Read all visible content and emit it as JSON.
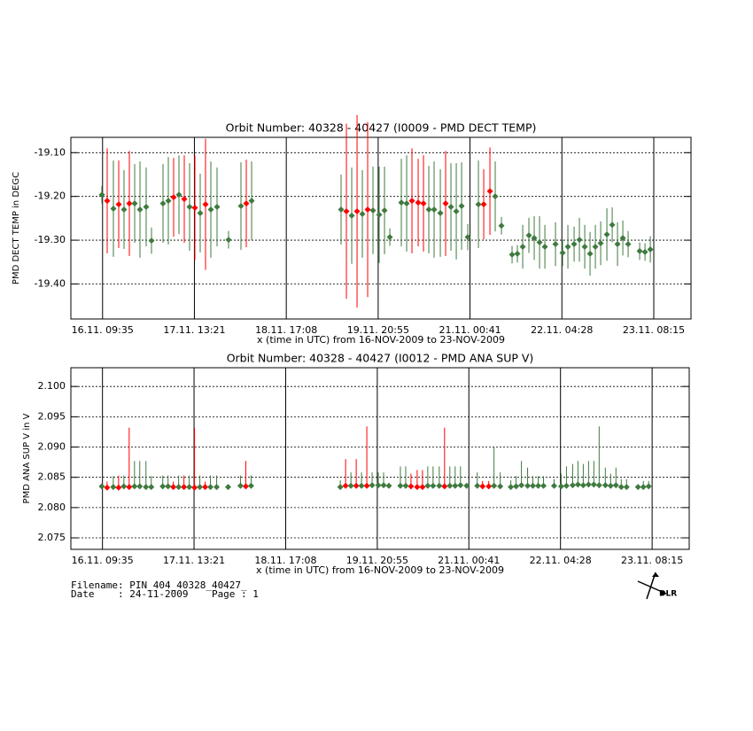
{
  "chart_data": [
    {
      "type": "scatter",
      "title": "Orbit Number: 40328 - 40427 (I0009 - PMD DECT TEMP)",
      "y_label": "PMD DECT TEMP in DEGC",
      "x_label": "x (time in UTC) from 16-NOV-2009 to 23-NOV-2009",
      "xlim": [
        0,
        187.5
      ],
      "xticks": [
        {
          "value": 9.583,
          "label": "16.11. 09:35"
        },
        {
          "value": 37.35,
          "label": "17.11. 13:21"
        },
        {
          "value": 65.133,
          "label": "18.11. 17:08"
        },
        {
          "value": 92.917,
          "label": "19.11. 20:55"
        },
        {
          "value": 120.683,
          "label": "21.11. 00:41"
        },
        {
          "value": 148.467,
          "label": "22.11. 04:28"
        },
        {
          "value": 176.25,
          "label": "23.11. 08:15"
        }
      ],
      "ylim": [
        -19.48,
        -19.065
      ],
      "yticks": [
        {
          "value": -19.1,
          "label": "-19.10"
        },
        {
          "value": -19.2,
          "label": "-19.20"
        },
        {
          "value": -19.3,
          "label": "-19.30"
        },
        {
          "value": -19.4,
          "label": "-19.40"
        }
      ],
      "grid": true,
      "series": [
        {
          "color": "#ff0000",
          "x": [
            10.98,
            14.47,
            17.68,
            31.07,
            34.29,
            37.5,
            40.72,
            53.04,
            83.31,
            86.53,
            89.74,
            103.13,
            105.01,
            106.62,
            113.31,
            124.83,
            126.71
          ],
          "values": [
            -19.21,
            -19.218,
            -19.216,
            -19.202,
            -19.206,
            -19.226,
            -19.218,
            -19.216,
            -19.234,
            -19.234,
            -19.23,
            -19.21,
            -19.214,
            -19.216,
            -19.216,
            -19.218,
            -19.188
          ],
          "errors": [
            0.12,
            0.1,
            0.12,
            0.09,
            0.1,
            0.12,
            0.15,
            0.1,
            0.2,
            0.22,
            0.2,
            0.12,
            0.1,
            0.11,
            0.12,
            0.08,
            0.1
          ]
        },
        {
          "color": "#3f7a3f",
          "x": [
            9.38,
            12.86,
            16.07,
            19.29,
            20.89,
            22.77,
            24.38,
            27.86,
            29.47,
            32.68,
            35.9,
            39.11,
            42.32,
            44.2,
            47.68,
            51.43,
            54.65,
            81.7,
            84.92,
            88.13,
            91.35,
            93.22,
            94.83,
            96.44,
            99.92,
            101.53,
            108.22,
            109.83,
            111.71,
            114.92,
            116.53,
            118.14,
            120.01,
            123.23,
            128.31,
            130.19,
            133.4,
            135.01,
            136.62,
            138.49,
            140.1,
            141.71,
            143.32,
            146.53,
            148.67,
            150.28,
            152.16,
            153.76,
            155.37,
            156.98,
            158.59,
            160.19,
            162.07,
            163.68,
            165.28,
            166.89,
            168.5,
            171.98,
            173.59,
            175.2
          ],
          "values": [
            -19.196,
            -19.228,
            -19.23,
            -19.216,
            -19.23,
            -19.224,
            -19.301,
            -19.216,
            -19.21,
            -19.196,
            -19.224,
            -19.238,
            -19.23,
            -19.224,
            -19.299,
            -19.222,
            -19.21,
            -19.23,
            -19.244,
            -19.24,
            -19.232,
            -19.242,
            -19.232,
            -19.293,
            -19.214,
            -19.216,
            -19.23,
            -19.23,
            -19.238,
            -19.224,
            -19.234,
            -19.222,
            -19.293,
            -19.218,
            -19.2,
            -19.267,
            -19.333,
            -19.331,
            -19.315,
            -19.289,
            -19.295,
            -19.305,
            -19.315,
            -19.309,
            -19.329,
            -19.315,
            -19.309,
            -19.299,
            -19.315,
            -19.331,
            -19.315,
            -19.307,
            -19.287,
            -19.265,
            -19.309,
            -19.295,
            -19.309,
            -19.325,
            -19.327,
            -19.321
          ],
          "errors": [
            0.02,
            0.11,
            0.09,
            0.09,
            0.11,
            0.09,
            0.03,
            0.09,
            0.1,
            0.09,
            0.1,
            0.09,
            0.11,
            0.09,
            0.02,
            0.1,
            0.09,
            0.08,
            0.11,
            0.1,
            0.1,
            0.11,
            0.1,
            0.02,
            0.1,
            0.11,
            0.1,
            0.11,
            0.1,
            0.1,
            0.11,
            0.1,
            0.03,
            0.1,
            0.08,
            0.02,
            0.02,
            0.02,
            0.05,
            0.04,
            0.05,
            0.06,
            0.05,
            0.05,
            0.03,
            0.05,
            0.04,
            0.05,
            0.05,
            0.05,
            0.05,
            0.05,
            0.06,
            0.04,
            0.05,
            0.04,
            0.03,
            0.02,
            0.02,
            0.03
          ]
        }
      ]
    },
    {
      "type": "scatter",
      "title": "Orbit Number: 40328 - 40427 (I0012 - PMD ANA SUP V)",
      "y_label": "PMD ANA SUP V in V",
      "x_label": "x (time in UTC) from 16-NOV-2009 to 23-NOV-2009",
      "xlim": [
        0,
        187.5
      ],
      "xticks": [
        {
          "value": 9.583,
          "label": "16.11. 09:35"
        },
        {
          "value": 37.35,
          "label": "17.11. 13:21"
        },
        {
          "value": 65.133,
          "label": "18.11. 17:08"
        },
        {
          "value": 92.917,
          "label": "19.11. 20:55"
        },
        {
          "value": 120.683,
          "label": "21.11. 00:41"
        },
        {
          "value": 148.467,
          "label": "22.11. 04:28"
        },
        {
          "value": 176.25,
          "label": "23.11. 08:15"
        }
      ],
      "ylim": [
        2.0731,
        2.1031
      ],
      "yticks": [
        2.075,
        {
          "value": 2.08,
          "label": "2.080"
        },
        2.085,
        {
          "value": 2.09,
          "label": "2.090"
        },
        2.095,
        {
          "value": 2.1,
          "label": "2.100"
        }
      ],
      "grid": true,
      "series": [
        {
          "color": "#ff0000",
          "x": [
            10.98,
            14.47,
            17.68,
            31.07,
            34.29,
            37.5,
            40.72,
            53.04,
            83.31,
            86.53,
            89.74,
            103.13,
            105.01,
            106.62,
            113.31,
            124.83,
            126.71
          ],
          "values": [
            2.0833,
            2.0833,
            2.0834,
            2.0834,
            2.0834,
            2.0833,
            2.0834,
            2.0835,
            2.0836,
            2.0836,
            2.0836,
            2.0835,
            2.0834,
            2.0834,
            2.0835,
            2.0835,
            2.0835
          ],
          "highs": [
            2.0843,
            2.0853,
            2.0932,
            2.0843,
            2.0853,
            2.0932,
            2.0843,
            2.0877,
            2.088,
            2.088,
            2.0934,
            2.0856,
            2.0862,
            2.0862,
            2.0932,
            2.0844,
            2.0844
          ]
        },
        {
          "color": "#3f7a3f",
          "x": [
            9.38,
            12.86,
            16.07,
            19.29,
            20.89,
            22.77,
            24.38,
            27.86,
            29.47,
            32.68,
            35.9,
            39.11,
            42.32,
            44.2,
            47.68,
            51.43,
            54.65,
            81.7,
            84.92,
            88.13,
            91.35,
            93.22,
            94.83,
            96.44,
            99.92,
            101.53,
            108.22,
            109.83,
            111.71,
            114.92,
            116.53,
            118.14,
            120.01,
            123.23,
            128.31,
            130.19,
            133.4,
            135.01,
            136.62,
            138.49,
            140.1,
            141.71,
            143.32,
            146.53,
            148.67,
            150.28,
            152.16,
            153.76,
            155.37,
            156.98,
            158.59,
            160.19,
            162.07,
            163.68,
            165.28,
            166.89,
            168.5,
            171.98,
            173.59,
            175.2
          ],
          "values": [
            2.0835,
            2.0834,
            2.0835,
            2.0835,
            2.0835,
            2.0834,
            2.0834,
            2.0835,
            2.0835,
            2.0834,
            2.0834,
            2.0834,
            2.0834,
            2.0834,
            2.0834,
            2.0836,
            2.0836,
            2.0834,
            2.0836,
            2.0836,
            2.0837,
            2.0837,
            2.0837,
            2.0836,
            2.0836,
            2.0836,
            2.0836,
            2.0836,
            2.0836,
            2.0836,
            2.0836,
            2.0837,
            2.0836,
            2.0836,
            2.0836,
            2.0835,
            2.0834,
            2.0835,
            2.0837,
            2.0836,
            2.0836,
            2.0836,
            2.0836,
            2.0836,
            2.0835,
            2.0836,
            2.0837,
            2.0838,
            2.0837,
            2.0838,
            2.0838,
            2.0837,
            2.0837,
            2.0836,
            2.0837,
            2.0834,
            2.0834,
            2.0834,
            2.0834,
            2.0835
          ],
          "highs": [
            2.0835,
            2.0852,
            2.0853,
            2.0877,
            2.0877,
            2.0877,
            2.0852,
            2.0853,
            2.0853,
            2.0853,
            2.0853,
            2.0853,
            2.0853,
            2.0853,
            2.0834,
            2.0853,
            2.0853,
            2.0845,
            2.0858,
            2.0858,
            2.0858,
            2.0858,
            2.0858,
            2.0836,
            2.0868,
            2.0868,
            2.0868,
            2.0868,
            2.0868,
            2.0868,
            2.0868,
            2.0868,
            2.0836,
            2.0858,
            2.09,
            2.0858,
            2.0845,
            2.0852,
            2.0877,
            2.0866,
            2.0852,
            2.0852,
            2.0852,
            2.0847,
            2.0856,
            2.0868,
            2.0872,
            2.0877,
            2.0872,
            2.0877,
            2.0877,
            2.0934,
            2.0866,
            2.0856,
            2.0866,
            2.0847,
            2.0847,
            2.0834,
            2.0844,
            2.0844
          ]
        }
      ]
    }
  ],
  "footer": {
    "filename": "Filename: PIN_404_40328_40427_",
    "date": "Date    : 24-11-2009    Page : 1",
    "logo": "DLR"
  }
}
